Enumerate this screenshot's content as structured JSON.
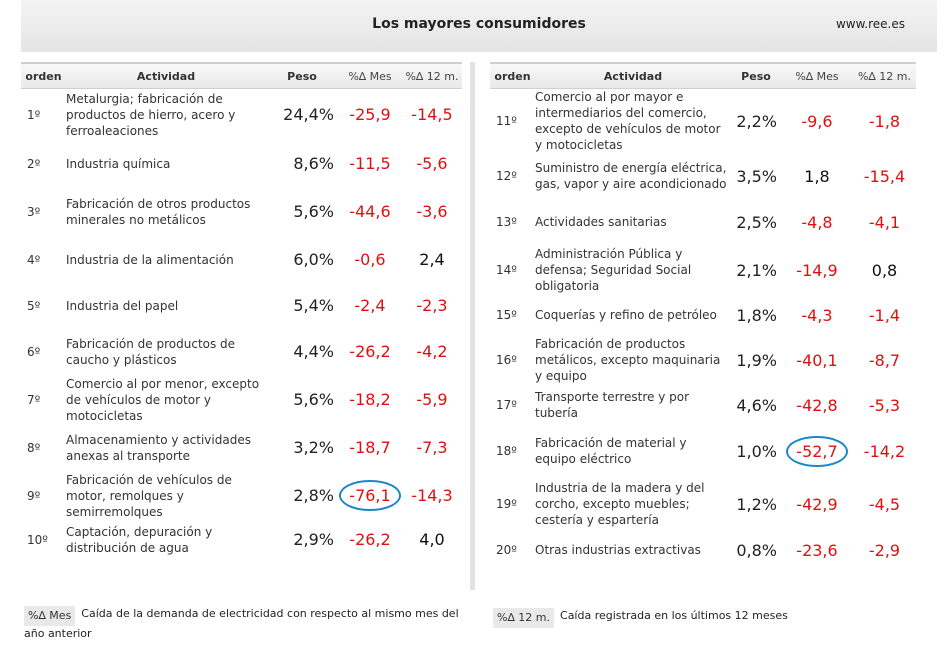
{
  "header": {
    "title": "Los mayores consumidores",
    "site": "www.ree.es"
  },
  "columns": {
    "orden": "orden",
    "actividad": "Actividad",
    "peso": "Peso",
    "mes": "%∆ Mes",
    "anual": "%∆ 12 m."
  },
  "left_rows": [
    {
      "orden": "1º",
      "actividad": "Metalurgia; fabricación de productos de hierro, acero y ferroaleaciones",
      "peso": "24,4%",
      "mes": "-25,9",
      "anual": "-14,5"
    },
    {
      "orden": "2º",
      "actividad": "Industria química",
      "peso": "8,6%",
      "mes": "-11,5",
      "anual": "-5,6"
    },
    {
      "orden": "3º",
      "actividad": "Fabricación de otros productos minerales no metálicos",
      "peso": "5,6%",
      "mes": "-44,6",
      "anual": "-3,6"
    },
    {
      "orden": "4º",
      "actividad": "Industria de la alimentación",
      "peso": "6,0%",
      "mes": "-0,6",
      "anual": "2,4"
    },
    {
      "orden": "5º",
      "actividad": "Industria del papel",
      "peso": "5,4%",
      "mes": "-2,4",
      "anual": "-2,3"
    },
    {
      "orden": "6º",
      "actividad": "Fabricación de productos de caucho y plásticos",
      "peso": "4,4%",
      "mes": "-26,2",
      "anual": "-4,2"
    },
    {
      "orden": "7º",
      "actividad": "Comercio al por menor, excepto de vehículos de motor y motocicletas",
      "peso": "5,6%",
      "mes": "-18,2",
      "anual": "-5,9"
    },
    {
      "orden": "8º",
      "actividad": "Almacenamiento y actividades anexas al transporte",
      "peso": "3,2%",
      "mes": "-18,7",
      "anual": "-7,3"
    },
    {
      "orden": "9º",
      "actividad": "Fabricación de vehículos de motor, remolques y semirremolques",
      "peso": "2,8%",
      "mes": "-76,1",
      "anual": "-14,3",
      "highlight": true
    },
    {
      "orden": "10º",
      "actividad": "Captación, depuración y distribución de agua",
      "peso": "2,9%",
      "mes": "-26,2",
      "anual": "4,0"
    }
  ],
  "right_rows": [
    {
      "orden": "11º",
      "actividad": "Comercio al por mayor e intermediarios del comercio, excepto de vehículos de motor y motocicletas",
      "peso": "2,2%",
      "mes": "-9,6",
      "anual": "-1,8"
    },
    {
      "orden": "12º",
      "actividad": "Suministro de energía eléctrica, gas, vapor y aire acondicionado",
      "peso": "3,5%",
      "mes": "1,8",
      "anual": "-15,4"
    },
    {
      "orden": "13º",
      "actividad": "Actividades sanitarias",
      "peso": "2,5%",
      "mes": "-4,8",
      "anual": "-4,1"
    },
    {
      "orden": "14º",
      "actividad": "Administración Pública y defensa; Seguridad Social obligatoria",
      "peso": "2,1%",
      "mes": "-14,9",
      "anual": "0,8"
    },
    {
      "orden": "15º",
      "actividad": "Coquerías y refino de petróleo",
      "peso": "1,8%",
      "mes": "-4,3",
      "anual": "-1,4"
    },
    {
      "orden": "16º",
      "actividad": "Fabricación de productos metálicos, excepto maquinaria y equipo",
      "peso": "1,9%",
      "mes": "-40,1",
      "anual": "-8,7"
    },
    {
      "orden": "17º",
      "actividad": "Transporte terrestre y por tubería",
      "peso": "4,6%",
      "mes": "-42,8",
      "anual": "-5,3"
    },
    {
      "orden": "18º",
      "actividad": "Fabricación de material y equipo eléctrico",
      "peso": "1,0%",
      "mes": "-52,7",
      "anual": "-14,2",
      "highlight": true
    },
    {
      "orden": "19º",
      "actividad": "Industria de la madera y del corcho, excepto muebles; cestería y espartería",
      "peso": "1,2%",
      "mes": "-42,9",
      "anual": "-4,5"
    },
    {
      "orden": "20º",
      "actividad": "Otras industrias extractivas",
      "peso": "0,8%",
      "mes": "-23,6",
      "anual": "-2,9"
    }
  ],
  "legend": {
    "mes_key": "%∆ Mes",
    "mes_text": "Caída de la demanda de electricidad con respecto al mismo mes del año anterior",
    "anual_key": "%∆ 12 m.",
    "anual_text": "Caída registrada en los últimos 12 meses"
  },
  "colors": {
    "negative": "#e01010",
    "positive": "#111111",
    "highlight_circle": "#1e86c8"
  }
}
